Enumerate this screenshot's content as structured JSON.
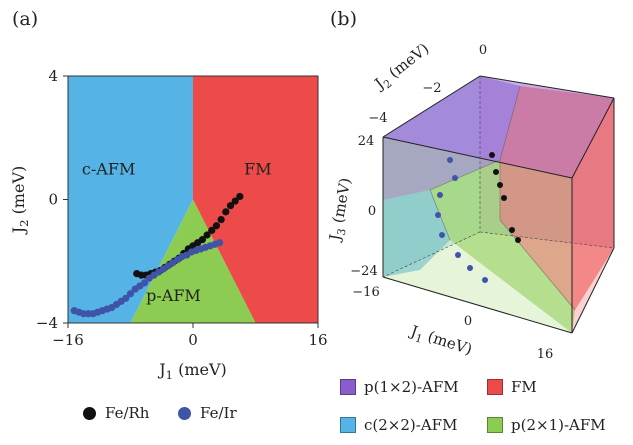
{
  "panels": {
    "a": "(a)",
    "b": "(b)"
  },
  "chart_data": [
    {
      "type": "scatter",
      "panel": "a",
      "xlabel": "J",
      "xlabel_sub": "1",
      "xlabel_unit": " (meV)",
      "ylabel": "J",
      "ylabel_sub": "2",
      "ylabel_unit": " (meV)",
      "xlim": [
        -16,
        16
      ],
      "ylim": [
        -4,
        4
      ],
      "xticks": [
        -16,
        0,
        16
      ],
      "xtick_labels": [
        "−16",
        "0",
        "16"
      ],
      "yticks": [
        -4,
        0,
        4
      ],
      "ytick_labels": [
        "−4",
        "0",
        "4"
      ],
      "regions": [
        {
          "label": "c-AFM",
          "color": "#55b3e5",
          "label_at": [
            -10.8,
            1.0
          ]
        },
        {
          "label": "FM",
          "color": "#ed4a4a",
          "label_at": [
            8.3,
            1.0
          ]
        },
        {
          "label": "p-AFM",
          "color": "#8ccc52",
          "label_at": [
            -2.5,
            -3.1
          ]
        }
      ],
      "series": [
        {
          "name": "Fe/Rh",
          "color": "#111111",
          "points": [
            [
              -7.2,
              -2.4
            ],
            [
              -6.6,
              -2.45
            ],
            [
              -6.0,
              -2.45
            ],
            [
              -5.4,
              -2.4
            ],
            [
              -4.8,
              -2.35
            ],
            [
              -4.2,
              -2.3
            ],
            [
              -3.6,
              -2.2
            ],
            [
              -3.0,
              -2.1
            ],
            [
              -2.4,
              -2.0
            ],
            [
              -1.8,
              -1.9
            ],
            [
              -1.2,
              -1.75
            ],
            [
              -0.6,
              -1.6
            ],
            [
              0.0,
              -1.5
            ],
            [
              0.6,
              -1.4
            ],
            [
              1.2,
              -1.3
            ],
            [
              1.8,
              -1.15
            ],
            [
              2.4,
              -1.0
            ],
            [
              3.0,
              -0.85
            ],
            [
              3.6,
              -0.65
            ],
            [
              4.2,
              -0.4
            ],
            [
              4.8,
              -0.2
            ],
            [
              5.4,
              -0.05
            ],
            [
              6.0,
              0.1
            ]
          ]
        },
        {
          "name": "Fe/Ir",
          "color": "#3f54a7",
          "points": [
            [
              -15.2,
              -3.6
            ],
            [
              -14.6,
              -3.65
            ],
            [
              -14.0,
              -3.7
            ],
            [
              -13.4,
              -3.7
            ],
            [
              -12.8,
              -3.7
            ],
            [
              -12.2,
              -3.65
            ],
            [
              -11.6,
              -3.6
            ],
            [
              -11.0,
              -3.55
            ],
            [
              -10.4,
              -3.5
            ],
            [
              -9.8,
              -3.4
            ],
            [
              -9.2,
              -3.3
            ],
            [
              -8.6,
              -3.2
            ],
            [
              -8.0,
              -3.05
            ],
            [
              -7.4,
              -2.9
            ],
            [
              -6.8,
              -2.8
            ],
            [
              -6.2,
              -2.7
            ],
            [
              -5.6,
              -2.55
            ],
            [
              -5.0,
              -2.45
            ],
            [
              -4.4,
              -2.35
            ],
            [
              -3.8,
              -2.25
            ],
            [
              -3.2,
              -2.15
            ],
            [
              -2.6,
              -2.05
            ],
            [
              -2.0,
              -1.95
            ],
            [
              -1.4,
              -1.85
            ],
            [
              -0.8,
              -1.8
            ],
            [
              -0.2,
              -1.7
            ],
            [
              0.4,
              -1.65
            ],
            [
              1.0,
              -1.6
            ],
            [
              1.6,
              -1.55
            ],
            [
              2.2,
              -1.5
            ],
            [
              2.8,
              -1.45
            ],
            [
              3.4,
              -1.4
            ]
          ]
        }
      ],
      "legend": [
        {
          "label": "Fe/Rh",
          "color": "#111111"
        },
        {
          "label": "Fe/Ir",
          "color": "#3f54a7"
        }
      ]
    },
    {
      "type": "3d-phase-diagram",
      "panel": "b",
      "axes": {
        "j1": {
          "label": "J",
          "sub": "1",
          "unit": " (meV)",
          "tick_labels": [
            "−16",
            "0",
            "16"
          ]
        },
        "j2": {
          "label": "J",
          "sub": "2",
          "unit": " (meV)",
          "tick_labels": [
            "0",
            "−2",
            "−4"
          ]
        },
        "j3": {
          "label": "J",
          "sub": "3",
          "unit": " (meV)",
          "tick_labels": [
            "24",
            "0",
            "−24"
          ]
        }
      },
      "phases": [
        {
          "label": "p(1×2)-AFM",
          "color": "#8a5ccc"
        },
        {
          "label": "FM",
          "color": "#ed4a4a"
        },
        {
          "label": "c(2×2)-AFM",
          "color": "#55b3e5"
        },
        {
          "label": "p(2×1)-AFM",
          "color": "#8ccc52"
        }
      ]
    }
  ]
}
